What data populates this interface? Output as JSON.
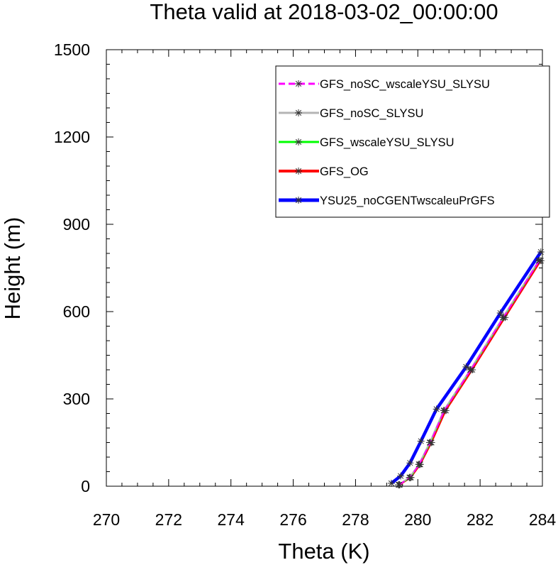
{
  "chart_data": {
    "type": "line",
    "title": "Theta valid at 2018-03-02_00:00:00",
    "xlabel": "Theta (K)",
    "ylabel": "Height (m)",
    "xlim": [
      270,
      284
    ],
    "ylim": [
      0,
      1500
    ],
    "xticks": [
      270,
      272,
      274,
      276,
      278,
      280,
      282,
      284
    ],
    "yticks": [
      0,
      300,
      600,
      900,
      1200,
      1500
    ],
    "x_tick_labels": [
      "270",
      "272",
      "274",
      "276",
      "278",
      "280",
      "282",
      "284"
    ],
    "y_tick_labels": [
      "0",
      "300",
      "600",
      "900",
      "1200",
      "1500"
    ],
    "legend_position": "top-right",
    "grid": false,
    "series": [
      {
        "name": "GFS_noSC_wscaleYSU_SLYSU",
        "color": "#ff00ff",
        "style": "dash",
        "marker": "asterisk",
        "x": [
          279.4,
          279.75,
          280.05,
          280.4,
          280.85,
          281.7,
          282.75,
          283.9
        ],
        "y": [
          5,
          30,
          75,
          150,
          260,
          400,
          580,
          775
        ]
      },
      {
        "name": "GFS_noSC_SLYSU",
        "color": "#b4b4b4",
        "style": "solid",
        "marker": "asterisk",
        "x": [
          279.38,
          279.73,
          280.03,
          280.38,
          280.83,
          281.68,
          282.73,
          283.88
        ],
        "y": [
          5,
          30,
          75,
          150,
          260,
          400,
          580,
          775
        ]
      },
      {
        "name": "GFS_wscaleYSU_SLYSU",
        "color": "#00ff00",
        "style": "solid",
        "marker": "asterisk",
        "x": [
          279.4,
          279.75,
          280.05,
          280.4,
          280.85,
          281.7,
          282.75,
          283.9
        ],
        "y": [
          5,
          30,
          75,
          150,
          260,
          400,
          580,
          775
        ]
      },
      {
        "name": "GFS_OG",
        "color": "#ff0000",
        "style": "solid",
        "marker": "asterisk",
        "x": [
          279.42,
          279.78,
          280.08,
          280.44,
          280.9,
          281.75,
          282.8,
          283.95
        ],
        "y": [
          5,
          30,
          75,
          150,
          260,
          400,
          580,
          775
        ]
      },
      {
        "name": "YSU25_noCGENTwscaleuPrGFS",
        "color": "#0000ff",
        "style": "solid",
        "marker": "asterisk",
        "x": [
          279.15,
          279.45,
          279.75,
          280.1,
          280.6,
          281.55,
          282.65,
          283.95
        ],
        "y": [
          10,
          35,
          80,
          155,
          265,
          410,
          595,
          805
        ]
      }
    ]
  }
}
